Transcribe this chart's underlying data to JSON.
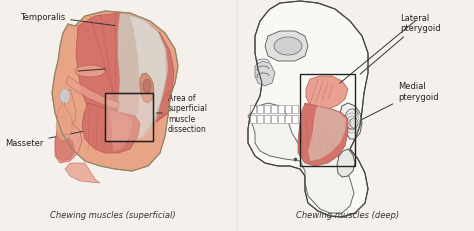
{
  "title_left": "Chewing muscles (superficial)",
  "title_right": "Chewing muscles (deep)",
  "labels": {
    "temporalis": "Temporalis",
    "masseter": "Masseter",
    "area": "Area of\nsuperficial\nmuscle\ndissection",
    "lateral": "Lateral\npterygoid",
    "medial": "Medial\npterygoid"
  },
  "skin_color": "#E8A585",
  "muscle_color": "#D4736A",
  "muscle_dark": "#B85550",
  "muscle_light": "#E8A090",
  "tendon_color": "#D8D0C8",
  "bg_color": "#f5f0eb",
  "line_color": "#444444",
  "fig_width": 4.74,
  "fig_height": 2.32,
  "dpi": 100
}
